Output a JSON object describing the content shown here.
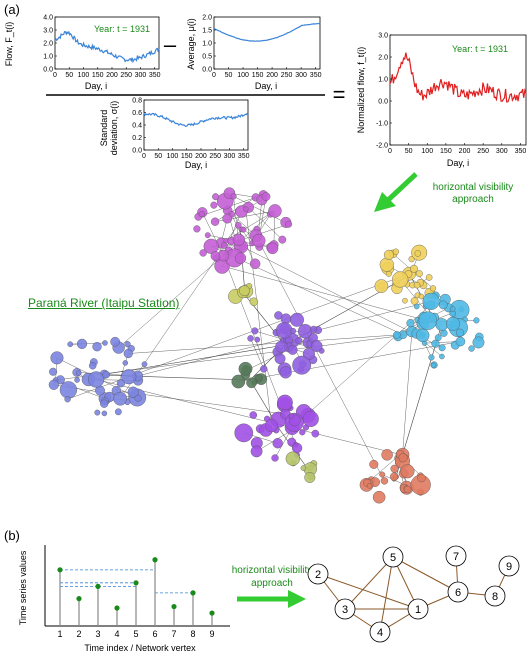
{
  "panel_a": {
    "label": "(a)",
    "minus": "–",
    "equals": "=",
    "flow_plot": {
      "ylabel": "Flow, F_t(i)",
      "xlabel": "Day, i",
      "yticks": [
        "0.0",
        "1.0",
        "2.0",
        "3.0",
        "4.0"
      ],
      "xticks": [
        "0",
        "50",
        "100",
        "150",
        "200",
        "250",
        "300",
        "350"
      ],
      "year": "Year: t = 1931"
    },
    "avg_plot": {
      "ylabel": "Average, μ(i)",
      "xlabel": "Day, i",
      "yticks": [
        "0.0",
        "0.5",
        "1.0",
        "1.5",
        "2.0"
      ],
      "xticks": [
        "0",
        "50",
        "100",
        "150",
        "200",
        "250",
        "300",
        "350"
      ]
    },
    "std_plot": {
      "ylabel1": "Standard",
      "ylabel2": "deviation, σ(i)",
      "xlabel": "Day, i",
      "yticks": [
        "0.0",
        "0.2",
        "0.4",
        "0.6",
        "0.8"
      ],
      "xticks": [
        "0",
        "50",
        "100",
        "150",
        "200",
        "250",
        "300",
        "350"
      ]
    },
    "norm_plot": {
      "ylabel": "Normalized flow, f_t(i)",
      "xlabel": "Day, i",
      "yticks": [
        "-2.0",
        "-1.0",
        "0.0",
        "1.0",
        "2.0",
        "3.0"
      ],
      "xticks": [
        "0",
        "50",
        "100",
        "150",
        "200",
        "250",
        "300",
        "350"
      ],
      "year": "Year: t = 1931"
    },
    "hva_line1": "horizontal visibility",
    "hva_line2": "approach",
    "river_label": "Paraná River (Itaipu Station)"
  },
  "panel_b": {
    "label": "(b)",
    "ylabel": "Time series values",
    "xlabel": "Time index / Network vertex",
    "x_indices": [
      "1",
      "2",
      "3",
      "4",
      "5",
      "6",
      "7",
      "8",
      "9"
    ],
    "values": [
      0.78,
      0.38,
      0.55,
      0.25,
      0.6,
      0.92,
      0.27,
      0.46,
      0.18
    ],
    "hva_line1": "horizontal visibility",
    "hva_line2": "approach",
    "nodes": [
      "1",
      "2",
      "3",
      "4",
      "5",
      "6",
      "7",
      "8",
      "9"
    ]
  },
  "colors": {
    "green": "#1a8a1a",
    "arrow": "#33cc33",
    "blue_line": "#3a84d8",
    "red_line": "#e02020",
    "edge": "#8a5a2a"
  }
}
